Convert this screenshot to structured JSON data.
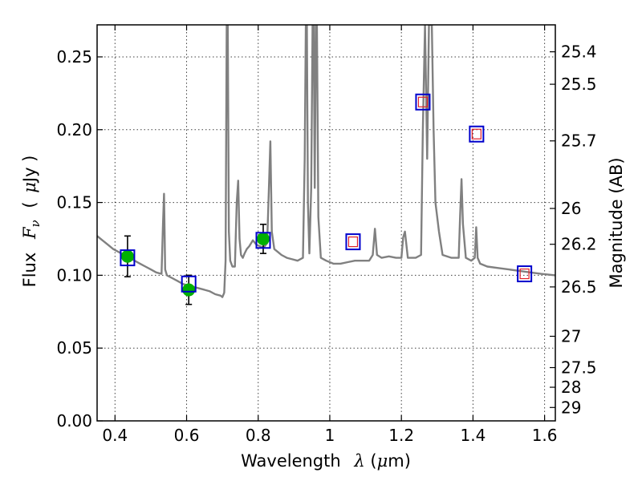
{
  "chart_data": {
    "type": "scatter",
    "title": "",
    "xlabel": "Wavelength",
    "xlabel_math": "λ",
    "xlabel_unit_open": " (",
    "xlabel_unit_mu": "μ",
    "xlabel_unit_rest": "m)",
    "ylabel": "Flux",
    "ylabel_math": "F",
    "ylabel_sub": "ν",
    "ylabel_unit_open": "(",
    "ylabel_unit_mu": "μ",
    "ylabel_unit_rest": "Jy )",
    "y2label": "Magnitude (AB)",
    "xlim": [
      0.35,
      1.63
    ],
    "ylim": [
      0.0,
      0.272
    ],
    "grid": true,
    "x_ticks": [
      0.4,
      0.6,
      0.8,
      1.0,
      1.2,
      1.4,
      1.6
    ],
    "x_tick_labels": [
      "0.4",
      "0.6",
      "0.8",
      "1",
      "1.2",
      "1.4",
      "1.6"
    ],
    "y_ticks": [
      0.0,
      0.05,
      0.1,
      0.15,
      0.2,
      0.25
    ],
    "y_tick_labels": [
      "0.00",
      "0.05",
      "0.10",
      "0.15",
      "0.20",
      "0.25"
    ],
    "magnitude_ticks": [
      {
        "label": "25.4",
        "flux": 0.2535
      },
      {
        "label": "25.5",
        "flux": 0.2312
      },
      {
        "label": "25.7",
        "flux": 0.1923
      },
      {
        "label": "26",
        "flux": 0.1459
      },
      {
        "label": "26.2",
        "flux": 0.1213
      },
      {
        "label": "26.5",
        "flux": 0.092
      },
      {
        "label": "27",
        "flux": 0.0581
      },
      {
        "label": "27.5",
        "flux": 0.0366
      },
      {
        "label": "28",
        "flux": 0.0231
      },
      {
        "label": "29",
        "flux": 0.0092
      }
    ],
    "series": [
      {
        "kind": "spectrum",
        "color": "#808080",
        "x": [
          0.35,
          0.365,
          0.38,
          0.395,
          0.41,
          0.425,
          0.44,
          0.455,
          0.47,
          0.485,
          0.5,
          0.515,
          0.53,
          0.534,
          0.537,
          0.54,
          0.545,
          0.56,
          0.575,
          0.59,
          0.605,
          0.62,
          0.635,
          0.65,
          0.665,
          0.68,
          0.695,
          0.7,
          0.705,
          0.709,
          0.712,
          0.715,
          0.718,
          0.722,
          0.728,
          0.735,
          0.74,
          0.744,
          0.748,
          0.752,
          0.757,
          0.762,
          0.768,
          0.775,
          0.785,
          0.795,
          0.805,
          0.815,
          0.825,
          0.83,
          0.834,
          0.838,
          0.845,
          0.855,
          0.865,
          0.88,
          0.895,
          0.91,
          0.925,
          0.93,
          0.933,
          0.936,
          0.939,
          0.943,
          0.948,
          0.952,
          0.955,
          0.958,
          0.961,
          0.964,
          0.968,
          0.975,
          0.99,
          1.01,
          1.03,
          1.05,
          1.07,
          1.09,
          1.11,
          1.12,
          1.126,
          1.132,
          1.145,
          1.165,
          1.185,
          1.2,
          1.205,
          1.21,
          1.218,
          1.24,
          1.255,
          1.26,
          1.266,
          1.272,
          1.277,
          1.285,
          1.29,
          1.295,
          1.3,
          1.305,
          1.315,
          1.34,
          1.36,
          1.364,
          1.368,
          1.372,
          1.38,
          1.395,
          1.405,
          1.409,
          1.413,
          1.42,
          1.44,
          1.47,
          1.5,
          1.53,
          1.56,
          1.59,
          1.63
        ],
        "y": [
          0.127,
          0.124,
          0.121,
          0.118,
          0.116,
          0.114,
          0.112,
          0.11,
          0.108,
          0.106,
          0.104,
          0.102,
          0.101,
          0.135,
          0.156,
          0.104,
          0.1,
          0.098,
          0.096,
          0.094,
          0.093,
          0.092,
          0.091,
          0.09,
          0.089,
          0.087,
          0.086,
          0.085,
          0.088,
          0.11,
          0.272,
          0.272,
          0.13,
          0.11,
          0.106,
          0.106,
          0.15,
          0.165,
          0.125,
          0.114,
          0.112,
          0.115,
          0.118,
          0.12,
          0.124,
          0.121,
          0.12,
          0.119,
          0.122,
          0.16,
          0.192,
          0.13,
          0.118,
          0.116,
          0.114,
          0.112,
          0.111,
          0.11,
          0.112,
          0.18,
          0.272,
          0.272,
          0.15,
          0.115,
          0.16,
          0.272,
          0.272,
          0.16,
          0.272,
          0.272,
          0.14,
          0.112,
          0.11,
          0.108,
          0.108,
          0.109,
          0.11,
          0.11,
          0.11,
          0.114,
          0.132,
          0.114,
          0.112,
          0.113,
          0.112,
          0.112,
          0.126,
          0.13,
          0.112,
          0.112,
          0.114,
          0.2,
          0.272,
          0.18,
          0.272,
          0.272,
          0.2,
          0.15,
          0.14,
          0.13,
          0.114,
          0.112,
          0.112,
          0.14,
          0.166,
          0.135,
          0.112,
          0.11,
          0.112,
          0.133,
          0.112,
          0.108,
          0.106,
          0.105,
          0.104,
          0.103,
          0.102,
          0.101,
          0.1
        ]
      },
      {
        "kind": "observed",
        "color": "#00b000",
        "x": [
          0.435,
          0.606,
          0.814
        ],
        "y": [
          0.113,
          0.09,
          0.125
        ],
        "yerr": [
          0.014,
          0.01,
          0.01
        ]
      },
      {
        "kind": "model_photometry",
        "color": "#0000cc",
        "x": [
          0.435,
          0.606,
          0.814,
          1.065,
          1.26,
          1.41,
          1.544
        ],
        "y": [
          0.112,
          0.094,
          0.124,
          0.123,
          0.219,
          0.197,
          0.101
        ]
      },
      {
        "kind": "predicted",
        "color": "#e0202a",
        "x": [
          1.065,
          1.26,
          1.41,
          1.544
        ],
        "y": [
          0.123,
          0.219,
          0.197,
          0.101
        ]
      }
    ]
  }
}
